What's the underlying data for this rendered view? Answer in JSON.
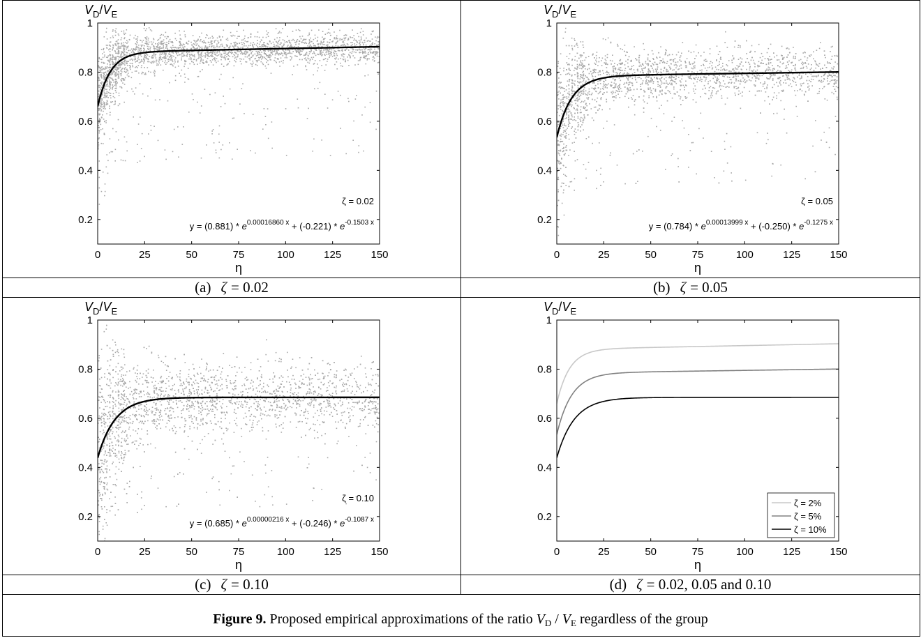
{
  "figure": {
    "caption_bold": "Figure 9.",
    "caption_rest_before": " Proposed empirical approximations of the ratio ",
    "caption_v1": "V",
    "caption_sub1": "D",
    "caption_slash": " / ",
    "caption_v2": "V",
    "caption_sub2": "E",
    "caption_tail": " regardless of the group"
  },
  "panels": [
    {
      "label_prefix": "(a)",
      "label_zeta": "ζ",
      "label_value": "= 0.02",
      "chart_data": {
        "type": "scatter",
        "ylabel_main": "V",
        "ylabel_sub1": "D",
        "ylabel_div": "/",
        "ylabel_main2": "V",
        "ylabel_sub2": "E",
        "xlabel": "η",
        "xlim": [
          0,
          150
        ],
        "ylim": [
          0.1,
          1.0
        ],
        "xticks": [
          0,
          25,
          50,
          75,
          100,
          125,
          150
        ],
        "yticks": [
          0.2,
          0.4,
          0.6,
          0.8,
          1
        ],
        "ytick_labels": [
          "0.2",
          "0.4",
          "0.6",
          "0.8",
          "1"
        ],
        "zeta_annotation": "ζ = 0.02",
        "equation": {
          "prefix": "y = (0.881) * ",
          "e1": "e",
          "exp1": "0.00016860 x",
          "mid": " + (-0.221) * ",
          "e2": "e",
          "exp2": "-0.1503 x"
        },
        "fit": {
          "a": 0.881,
          "b": 0.0001686,
          "c": -0.221,
          "d": -0.1503
        },
        "scatter_spread": 0.05,
        "series": [
          {
            "values_from": "fit",
            "color": "#000000"
          }
        ],
        "scatter_color": "#a8a8a8"
      }
    },
    {
      "label_prefix": "(b)",
      "label_zeta": "ζ",
      "label_value": "= 0.05",
      "chart_data": {
        "type": "scatter",
        "ylabel_main": "V",
        "ylabel_sub1": "D",
        "ylabel_div": "/",
        "ylabel_main2": "V",
        "ylabel_sub2": "E",
        "xlabel": "η",
        "xlim": [
          0,
          150
        ],
        "ylim": [
          0.1,
          1.0
        ],
        "xticks": [
          0,
          25,
          50,
          75,
          100,
          125,
          150
        ],
        "yticks": [
          0.2,
          0.4,
          0.6,
          0.8,
          1
        ],
        "ytick_labels": [
          "0.2",
          "0.4",
          "0.6",
          "0.8",
          "1"
        ],
        "zeta_annotation": "ζ = 0.05",
        "equation": {
          "prefix": "y = (0.784) * ",
          "e1": "e",
          "exp1": "0.00013999 x",
          "mid": " + (-0.250) * ",
          "e2": "e",
          "exp2": "-0.1275 x"
        },
        "fit": {
          "a": 0.784,
          "b": 0.00013999,
          "c": -0.25,
          "d": -0.1275
        },
        "scatter_spread": 0.08,
        "series": [
          {
            "values_from": "fit",
            "color": "#000000"
          }
        ],
        "scatter_color": "#a8a8a8"
      }
    },
    {
      "label_prefix": "(c)",
      "label_zeta": "ζ",
      "label_value": "= 0.10",
      "chart_data": {
        "type": "scatter",
        "ylabel_main": "V",
        "ylabel_sub1": "D",
        "ylabel_div": "/",
        "ylabel_main2": "V",
        "ylabel_sub2": "E",
        "xlabel": "η",
        "xlim": [
          0,
          150
        ],
        "ylim": [
          0.1,
          1.0
        ],
        "xticks": [
          0,
          25,
          50,
          75,
          100,
          125,
          150
        ],
        "yticks": [
          0.2,
          0.4,
          0.6,
          0.8,
          1
        ],
        "ytick_labels": [
          "0.2",
          "0.4",
          "0.6",
          "0.8",
          "1"
        ],
        "zeta_annotation": "ζ = 0.10",
        "equation": {
          "prefix": "y = (0.685) * ",
          "e1": "e",
          "exp1": "0.00000216 x",
          "mid": " + (-0.246) * ",
          "e2": "e",
          "exp2": "-0.1087 x"
        },
        "fit": {
          "a": 0.685,
          "b": 2.16e-06,
          "c": -0.246,
          "d": -0.1087
        },
        "scatter_spread": 0.11,
        "series": [
          {
            "values_from": "fit",
            "color": "#000000"
          }
        ],
        "scatter_color": "#a8a8a8"
      }
    },
    {
      "label_prefix": "(d)",
      "label_zeta": "ζ",
      "label_value": "= 0.02, 0.05 and 0.10",
      "chart_data": {
        "type": "line",
        "ylabel_main": "V",
        "ylabel_sub1": "D",
        "ylabel_div": "/",
        "ylabel_main2": "V",
        "ylabel_sub2": "E",
        "xlabel": "η",
        "xlim": [
          0,
          150
        ],
        "ylim": [
          0.1,
          1.0
        ],
        "xticks": [
          0,
          25,
          50,
          75,
          100,
          125,
          150
        ],
        "yticks": [
          0.2,
          0.4,
          0.6,
          0.8,
          1
        ],
        "ytick_labels": [
          "0.2",
          "0.4",
          "0.6",
          "0.8",
          "1"
        ],
        "legend_position": "bottom-right",
        "series": [
          {
            "name": "ζ = 2%",
            "fit": {
              "a": 0.881,
              "b": 0.0001686,
              "c": -0.221,
              "d": -0.1503
            },
            "color": "#c8c8c8"
          },
          {
            "name": "ζ = 5%",
            "fit": {
              "a": 0.784,
              "b": 0.00013999,
              "c": -0.25,
              "d": -0.1275
            },
            "color": "#808080"
          },
          {
            "name": "ζ = 10%",
            "fit": {
              "a": 0.685,
              "b": 2.16e-06,
              "c": -0.246,
              "d": -0.1087
            },
            "color": "#000000"
          }
        ]
      }
    }
  ]
}
